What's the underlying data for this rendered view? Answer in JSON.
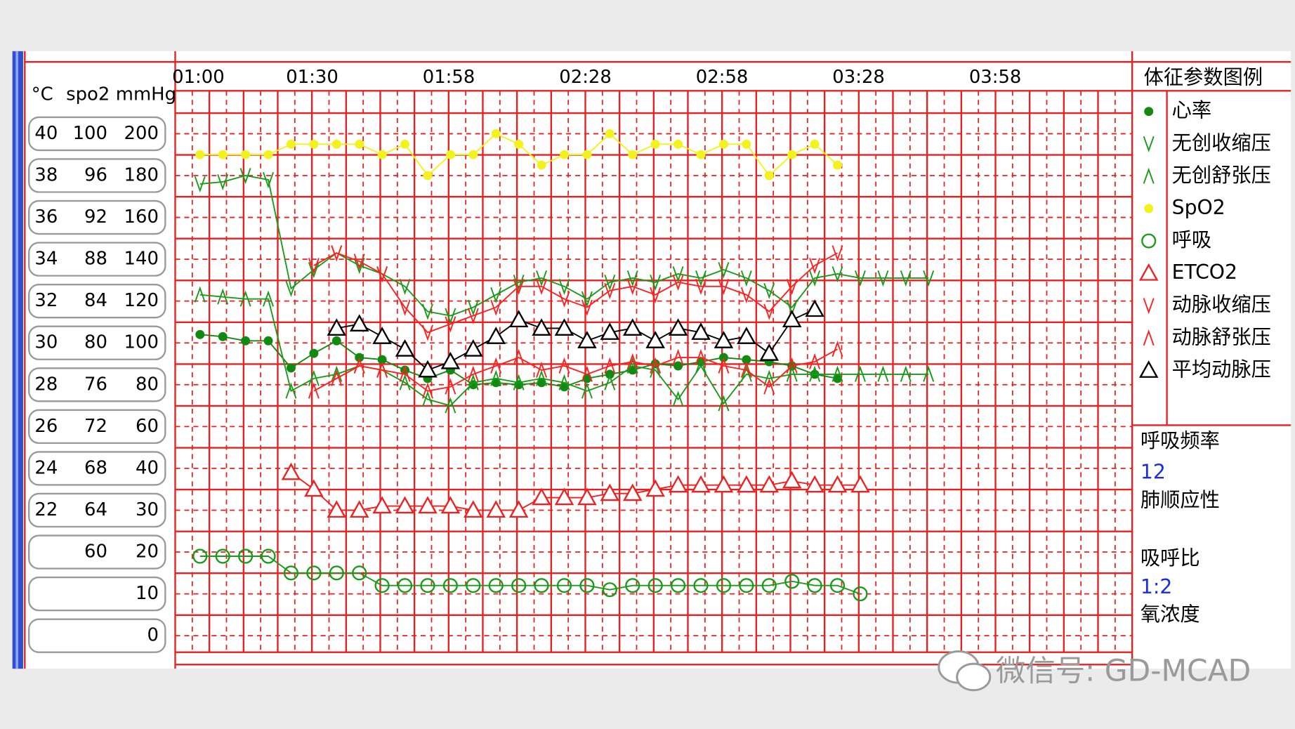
{
  "chart_data": {
    "type": "line",
    "categories": [
      "01:00",
      null,
      null,
      null,
      null,
      "01:30",
      null,
      null,
      null,
      null,
      null,
      "01:58",
      null,
      null,
      null,
      null,
      null,
      "02:28",
      null,
      null,
      null,
      null,
      null,
      "02:58",
      null,
      null,
      null,
      null,
      null,
      "03:28",
      null,
      null,
      null,
      null,
      null,
      "03:58",
      null,
      null,
      null,
      null,
      null
    ],
    "axis_header": {
      "temp": "°C",
      "spo2": "spo2",
      "mmhg": "mmHg"
    },
    "ylim": [
      0,
      200
    ],
    "yticks": [
      200,
      180,
      160,
      140,
      120,
      100,
      80,
      60,
      40,
      30,
      20,
      10,
      0
    ],
    "spo2_ticks": [
      100,
      96,
      92,
      88,
      84,
      80,
      76,
      72,
      68,
      64,
      60,
      null,
      null
    ],
    "temp_ticks": [
      40,
      38,
      36,
      34,
      32,
      30,
      28,
      26,
      24,
      22,
      null,
      null,
      null
    ],
    "grid": true,
    "legend_title": "体征参数图例",
    "series": [
      {
        "name": "心率",
        "color": "#128a12",
        "marker": "dot",
        "axis": "mmHg",
        "values": [
          104,
          103,
          101,
          101,
          88,
          95,
          101,
          93,
          92,
          87,
          83,
          87,
          80,
          81,
          80,
          81,
          79,
          83,
          85,
          87,
          90,
          89,
          91,
          93,
          92,
          91,
          89,
          85,
          83,
          null,
          null,
          null,
          null,
          null,
          null,
          null,
          null,
          null,
          null,
          null,
          null
        ]
      },
      {
        "name": "无创收缩压",
        "color": "#1a9a1a",
        "marker": "v",
        "axis": "mmHg",
        "values": [
          176,
          177,
          180,
          178,
          126,
          135,
          143,
          137,
          133,
          127,
          115,
          113,
          117,
          123,
          129,
          131,
          127,
          121,
          129,
          131,
          129,
          133,
          131,
          135,
          131,
          125,
          117,
          131,
          133,
          131,
          131,
          131,
          131,
          null,
          null,
          null,
          null,
          null,
          null,
          null,
          null
        ]
      },
      {
        "name": "无创舒张压",
        "color": "#1a9a1a",
        "marker": "caret",
        "axis": "mmHg",
        "values": [
          123,
          122,
          121,
          121,
          77,
          83,
          85,
          89,
          87,
          81,
          73,
          70,
          81,
          83,
          81,
          83,
          81,
          77,
          81,
          89,
          87,
          73,
          89,
          71,
          85,
          83,
          85,
          85,
          85,
          85,
          85,
          85,
          85,
          null,
          null,
          null,
          null,
          null,
          null,
          null,
          null
        ]
      },
      {
        "name": "SpO2",
        "color": "#f2f21e",
        "marker": "dot",
        "axis": "spo2",
        "values": [
          98,
          98,
          98,
          98,
          99,
          99,
          99,
          99,
          98,
          99,
          96,
          98,
          98,
          100,
          99,
          97,
          98,
          98,
          100,
          98,
          99,
          99,
          98,
          99,
          99,
          96,
          98,
          99,
          97,
          null,
          null,
          null,
          null,
          null,
          null,
          null,
          null,
          null,
          null,
          null,
          null
        ]
      },
      {
        "name": "呼吸",
        "color": "#1a9a1a",
        "marker": "circle",
        "axis": "mmHg",
        "values": [
          19,
          19,
          19,
          19,
          15,
          15,
          15,
          15,
          12,
          12,
          12,
          12,
          12,
          12,
          12,
          12,
          12,
          12,
          11,
          12,
          12,
          12,
          12,
          12,
          12,
          12,
          13,
          12,
          12,
          10,
          null,
          null,
          null,
          null,
          null,
          null,
          null,
          null,
          null,
          null,
          null
        ]
      },
      {
        "name": "ETCO2",
        "color": "#ee2020",
        "marker": "triangle",
        "axis": "mmHg",
        "values": [
          null,
          null,
          null,
          null,
          39,
          35,
          30,
          30,
          31,
          31,
          31,
          31,
          30,
          30,
          30,
          33,
          33,
          33,
          34,
          34,
          35,
          36,
          36,
          36,
          36,
          36,
          37,
          36,
          36,
          36,
          null,
          null,
          null,
          null,
          null,
          null,
          null,
          null,
          null,
          null,
          null
        ]
      },
      {
        "name": "动脉收缩压",
        "color": "#ff2020",
        "marker": "v",
        "axis": "mmHg",
        "values": [
          null,
          null,
          null,
          null,
          null,
          137,
          143,
          139,
          133,
          117,
          105,
          109,
          113,
          117,
          127,
          127,
          121,
          117,
          125,
          127,
          123,
          129,
          127,
          127,
          123,
          115,
          127,
          137,
          143,
          null,
          null,
          null,
          null,
          null,
          null,
          null,
          null,
          null,
          null,
          null,
          null
        ]
      },
      {
        "name": "动脉舒张压",
        "color": "#ff2020",
        "marker": "caret",
        "axis": "mmHg",
        "values": [
          null,
          null,
          null,
          null,
          null,
          77,
          83,
          89,
          87,
          85,
          77,
          79,
          85,
          89,
          93,
          87,
          89,
          85,
          89,
          91,
          89,
          93,
          93,
          89,
          87,
          79,
          89,
          91,
          97,
          null,
          null,
          null,
          null,
          null,
          null,
          null,
          null,
          null,
          null,
          null,
          null
        ]
      },
      {
        "name": "平均动脉压",
        "color": "#000000",
        "marker": "triangle",
        "axis": "mmHg",
        "values": [
          null,
          null,
          null,
          null,
          null,
          null,
          107,
          109,
          103,
          97,
          87,
          91,
          97,
          103,
          111,
          107,
          107,
          101,
          105,
          107,
          101,
          107,
          105,
          101,
          103,
          95,
          111,
          116,
          null,
          null,
          null,
          null,
          null,
          null,
          null,
          null,
          null,
          null,
          null,
          null,
          null
        ]
      }
    ]
  },
  "side_panel": {
    "resp_rate_label": "呼吸频率",
    "resp_rate_value": "12",
    "compliance_label": "肺顺应性",
    "ie_ratio_label": "吸呼比",
    "ie_ratio_value": "1:2",
    "oxygen_label": "氧浓度"
  },
  "watermark": "微信号: GD-MCAD"
}
